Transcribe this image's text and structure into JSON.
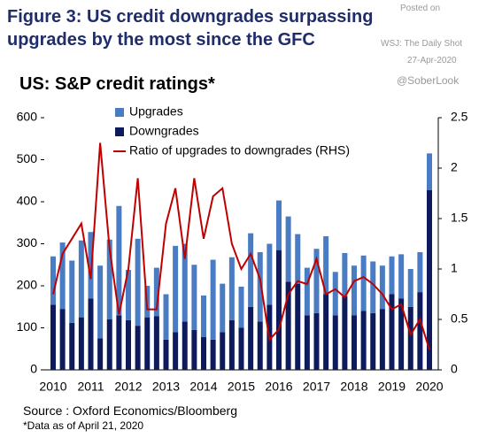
{
  "header": {
    "posted_on": "Posted on",
    "source": "WSJ: The Daily Shot",
    "date": "27-Apr-2020",
    "handle": "@SoberLook"
  },
  "chart_data": {
    "type": "bar",
    "stacked": true,
    "title": "Figure 3: US credit downgrades surpassing upgrades by the most since the GFC",
    "subtitle": "US: S&P credit ratings*",
    "source_note": "Source : Oxford Economics/Bloomberg",
    "footnote": "*Data as of April 21, 2020",
    "categories": [
      "2010",
      null,
      null,
      null,
      "2011",
      null,
      null,
      null,
      "2012",
      null,
      null,
      null,
      "2013",
      null,
      null,
      null,
      "2014",
      null,
      null,
      null,
      "2015",
      null,
      null,
      null,
      "2016",
      null,
      null,
      null,
      "2017",
      null,
      null,
      null,
      "2018",
      null,
      null,
      null,
      "2019",
      null,
      null,
      null,
      "2020"
    ],
    "series": [
      {
        "name": "Upgrades",
        "color": "#4a7cc4",
        "values": [
          115,
          158,
          148,
          183,
          158,
          173,
          190,
          260,
          120,
          207,
          75,
          115,
          108,
          205,
          185,
          155,
          99,
          190,
          115,
          150,
          98,
          175,
          165,
          145,
          118,
          155,
          118,
          113,
          153,
          138,
          103,
          103,
          118,
          132,
          123,
          103,
          90,
          105,
          90,
          95,
          87
        ]
      },
      {
        "name": "Downgrades",
        "color": "#0d1a5c",
        "values": [
          155,
          145,
          112,
          125,
          170,
          75,
          120,
          130,
          118,
          105,
          125,
          128,
          72,
          90,
          115,
          95,
          78,
          72,
          90,
          118,
          100,
          150,
          115,
          155,
          285,
          210,
          205,
          130,
          135,
          180,
          130,
          175,
          130,
          140,
          135,
          145,
          180,
          170,
          150,
          185,
          428
        ]
      },
      {
        "name": "Ratio of upgrades to downgrades (RHS)",
        "type": "line",
        "axis": "y2",
        "color": "#c00000",
        "values": [
          0.75,
          1.15,
          1.3,
          1.45,
          0.9,
          2.25,
          1.2,
          0.55,
          1.0,
          1.9,
          0.6,
          0.6,
          1.45,
          1.8,
          1.1,
          1.9,
          1.3,
          1.72,
          1.8,
          1.25,
          1.0,
          1.15,
          0.9,
          0.3,
          0.4,
          0.75,
          0.88,
          0.85,
          1.1,
          0.75,
          0.8,
          0.72,
          0.88,
          0.92,
          0.85,
          0.75,
          0.6,
          0.65,
          0.35,
          0.5,
          0.2
        ]
      }
    ],
    "ylim": [
      0,
      600
    ],
    "yticks": [
      0,
      100,
      200,
      300,
      400,
      500,
      600
    ],
    "y2lim": [
      0,
      2.5
    ],
    "y2ticks": [
      0,
      0.5,
      1,
      1.5,
      2,
      2.5
    ],
    "grid": false,
    "legend": "top-left"
  }
}
